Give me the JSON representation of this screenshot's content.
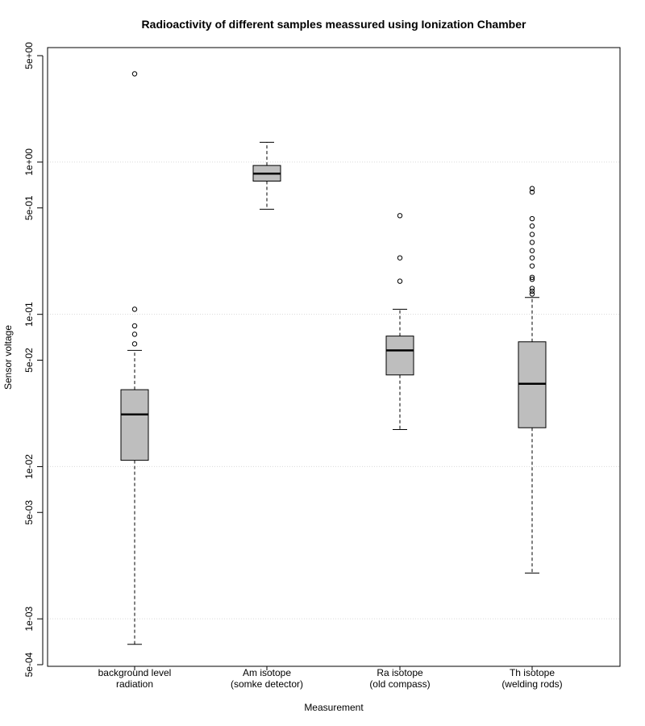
{
  "chart_data": {
    "type": "boxplot",
    "title": "Radioactivity of different samples meassured using Ionization Chamber",
    "xlabel": "Measurement",
    "ylabel": "Sensor voltage",
    "yscale": "log",
    "ylim": [
      0.0005,
      5
    ],
    "yticks": [
      {
        "value": 5,
        "label": "5e+00"
      },
      {
        "value": 1,
        "label": "1e+00"
      },
      {
        "value": 0.5,
        "label": "5e-01"
      },
      {
        "value": 0.1,
        "label": "1e-01"
      },
      {
        "value": 0.05,
        "label": "5e-02"
      },
      {
        "value": 0.01,
        "label": "1e-02"
      },
      {
        "value": 0.005,
        "label": "5e-03"
      },
      {
        "value": 0.001,
        "label": "1e-03"
      },
      {
        "value": 0.0005,
        "label": "5e-04"
      }
    ],
    "gridlines": [
      1,
      0.1,
      0.01,
      0.001
    ],
    "box_color": "#bebebe",
    "categories": [
      {
        "label_line1": "background level",
        "label_line2": "radiation",
        "whisker_low": 0.00068,
        "q1": 0.011,
        "median": 0.022,
        "q3": 0.032,
        "whisker_high": 0.058,
        "outliers": [
          0.064,
          0.074,
          0.084,
          0.108,
          3.8
        ]
      },
      {
        "label_line1": "Am isotope",
        "label_line2": "(somke detector)",
        "whisker_low": 0.49,
        "q1": 0.75,
        "median": 0.84,
        "q3": 0.95,
        "whisker_high": 1.35,
        "outliers": []
      },
      {
        "label_line1": "Ra isotope",
        "label_line2": "(old compass)",
        "whisker_low": 0.0175,
        "q1": 0.04,
        "median": 0.058,
        "q3": 0.072,
        "whisker_high": 0.108,
        "outliers": [
          0.165,
          0.235,
          0.445
        ]
      },
      {
        "label_line1": "Th isotope",
        "label_line2": "(welding rods)",
        "whisker_low": 0.002,
        "q1": 0.018,
        "median": 0.035,
        "q3": 0.066,
        "whisker_high": 0.129,
        "outliers": [
          0.136,
          0.142,
          0.148,
          0.17,
          0.175,
          0.208,
          0.235,
          0.262,
          0.297,
          0.335,
          0.38,
          0.425,
          0.635,
          0.67
        ]
      }
    ]
  }
}
